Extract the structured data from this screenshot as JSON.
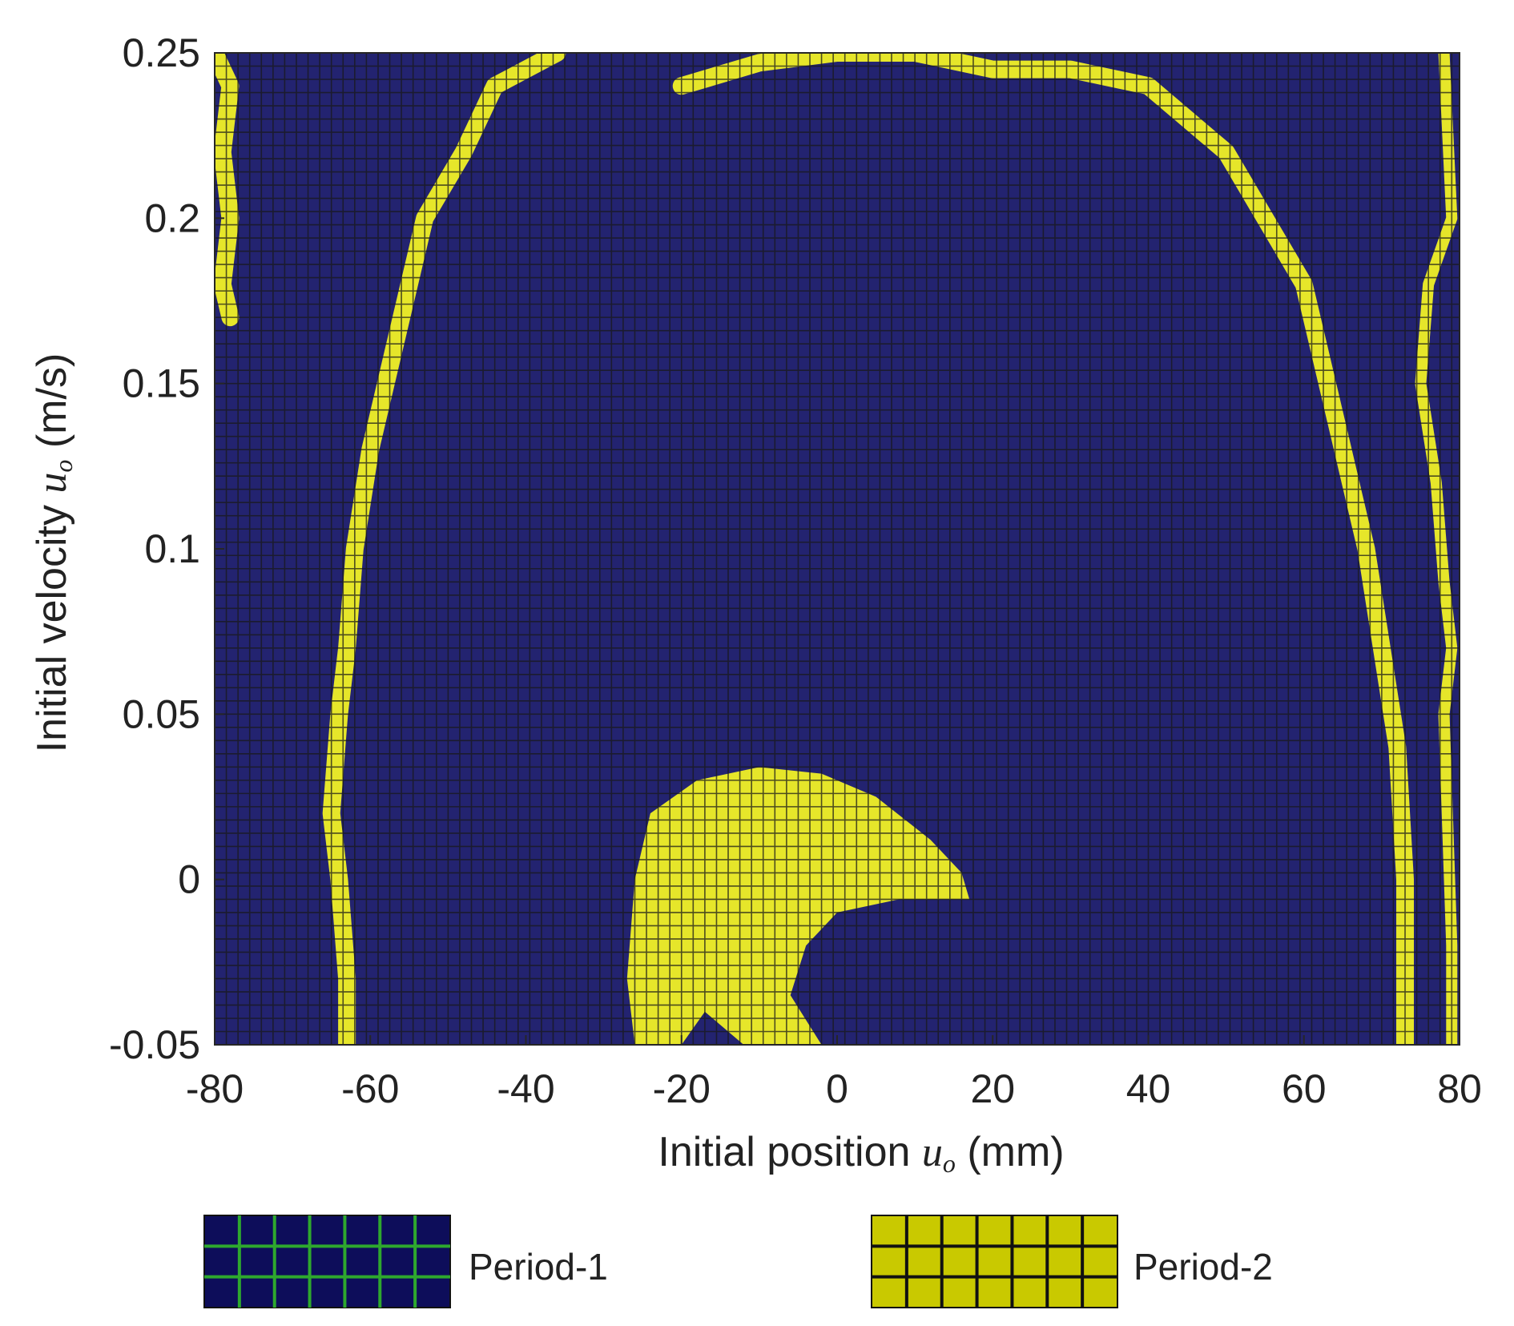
{
  "chart_data": {
    "type": "heatmap",
    "title": "",
    "xlabel": "Initial position",
    "xlabel_symbol": "u",
    "xlabel_subscript": "o",
    "xlabel_unit": "(mm)",
    "ylabel": "Initial velocity",
    "ylabel_symbol": "u",
    "ylabel_subscript": "o",
    "ylabel_unit": "(m/s)",
    "xlim": [
      -80,
      80
    ],
    "ylim": [
      -0.05,
      0.25
    ],
    "xticks": [
      -80,
      -60,
      -40,
      -20,
      0,
      20,
      40,
      60,
      80
    ],
    "xtick_labels": [
      "-80",
      "-60",
      "-40",
      "-20",
      "0",
      "20",
      "40",
      "60",
      "80"
    ],
    "yticks": [
      -0.05,
      0,
      0.05,
      0.1,
      0.15,
      0.2,
      0.25
    ],
    "ytick_labels": [
      "-0.05",
      "0",
      "0.05",
      "0.1",
      "0.15",
      "0.2",
      "0.25"
    ],
    "grid": true,
    "cell_size": {
      "x_mm": 1.5,
      "y_ms": 0.004
    },
    "background_class": "Period-1",
    "categories": [
      {
        "name": "Period-1",
        "color": "#232370",
        "grid_color": "#1a1a1a"
      },
      {
        "name": "Period-2",
        "color": "#e6e62a",
        "grid_color": "#1a1a1a"
      }
    ],
    "period2_regions": [
      {
        "region": "left-band",
        "points": [
          [
            -80,
            0.25
          ],
          [
            -78,
            0.24
          ],
          [
            -79,
            0.22
          ],
          [
            -78,
            0.2
          ],
          [
            -79,
            0.18
          ],
          [
            -78,
            0.17
          ]
        ]
      },
      {
        "region": "left-arc",
        "points": [
          [
            -36,
            0.25
          ],
          [
            -44,
            0.24
          ],
          [
            -48,
            0.22
          ],
          [
            -53,
            0.2
          ],
          [
            -56,
            0.17
          ],
          [
            -58,
            0.15
          ],
          [
            -60,
            0.13
          ],
          [
            -62,
            0.1
          ],
          [
            -63,
            0.07
          ],
          [
            -64,
            0.05
          ],
          [
            -65,
            0.02
          ],
          [
            -64,
            0.0
          ],
          [
            -63,
            -0.03
          ],
          [
            -63,
            -0.05
          ]
        ]
      },
      {
        "region": "top-arc",
        "points": [
          [
            -20,
            0.24
          ],
          [
            -10,
            0.247
          ],
          [
            0,
            0.25
          ],
          [
            10,
            0.25
          ],
          [
            20,
            0.245
          ],
          [
            30,
            0.245
          ],
          [
            40,
            0.24
          ],
          [
            50,
            0.22
          ],
          [
            55,
            0.2
          ],
          [
            60,
            0.18
          ],
          [
            63,
            0.15
          ],
          [
            66,
            0.12
          ],
          [
            68,
            0.1
          ],
          [
            70,
            0.07
          ],
          [
            72,
            0.04
          ],
          [
            73,
            0.0
          ],
          [
            73,
            -0.05
          ]
        ]
      },
      {
        "region": "right-edge",
        "points": [
          [
            78,
            0.25
          ],
          [
            79,
            0.2
          ],
          [
            76,
            0.18
          ],
          [
            75,
            0.15
          ],
          [
            77,
            0.12
          ],
          [
            78,
            0.09
          ],
          [
            79,
            0.07
          ],
          [
            78,
            0.05
          ],
          [
            79,
            -0.02
          ],
          [
            79,
            -0.05
          ]
        ]
      },
      {
        "region": "central-lobe",
        "points": [
          [
            -26,
            -0.05
          ],
          [
            -27,
            -0.03
          ],
          [
            -26,
            0.0
          ],
          [
            -24,
            0.02
          ],
          [
            -18,
            0.03
          ],
          [
            -10,
            0.034
          ],
          [
            -2,
            0.032
          ],
          [
            5,
            0.025
          ],
          [
            12,
            0.012
          ],
          [
            16,
            0.002
          ],
          [
            17,
            -0.006
          ],
          [
            8,
            -0.006
          ],
          [
            0,
            -0.01
          ],
          [
            -4,
            -0.02
          ],
          [
            -6,
            -0.035
          ],
          [
            -2,
            -0.05
          ],
          [
            -12,
            -0.05
          ],
          [
            -17,
            -0.04
          ],
          [
            -20,
            -0.05
          ]
        ]
      }
    ]
  }
}
